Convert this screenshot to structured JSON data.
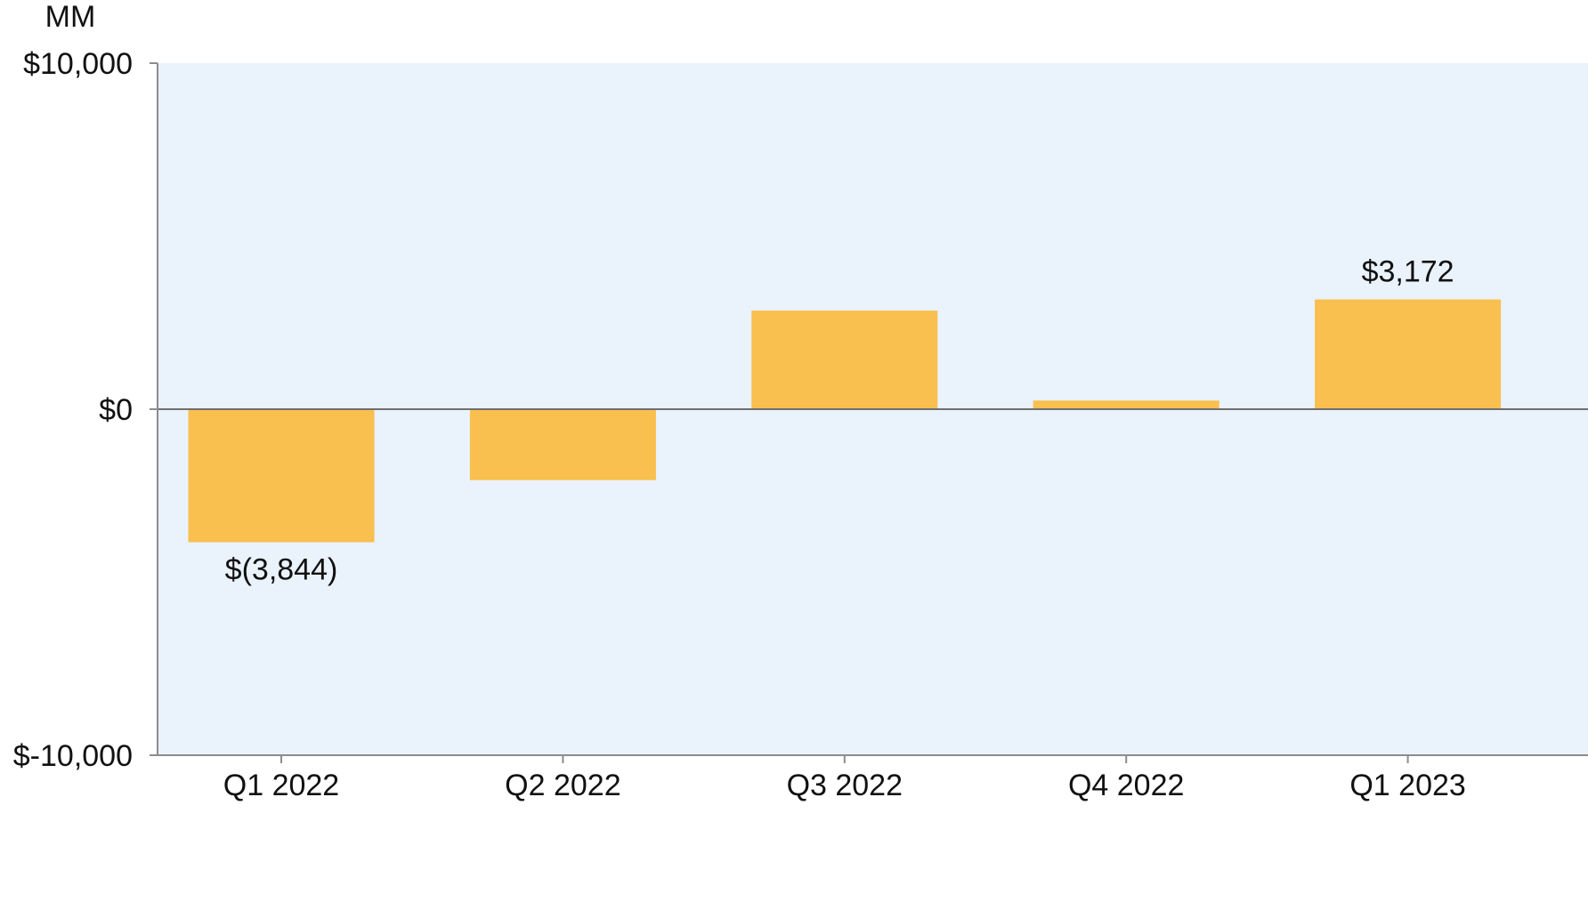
{
  "chart_data": {
    "type": "bar",
    "unit_label": "MM",
    "categories": [
      "Q1 2022",
      "Q2 2022",
      "Q3 2022",
      "Q4 2022",
      "Q1 2023"
    ],
    "values": [
      -3844,
      -2050,
      2850,
      250,
      3172
    ],
    "data_labels": [
      "$(3,844)",
      "",
      "",
      "",
      "$3,172"
    ],
    "ylim": [
      -10000,
      10000
    ],
    "yticks": [
      -10000,
      0,
      10000
    ],
    "ytick_labels": [
      "$-10,000",
      "$0",
      "$10,000"
    ],
    "colors": {
      "bar": "#F9BF4F",
      "plot_background": "#EAF2FC",
      "axis": "#8C8C8C"
    }
  }
}
